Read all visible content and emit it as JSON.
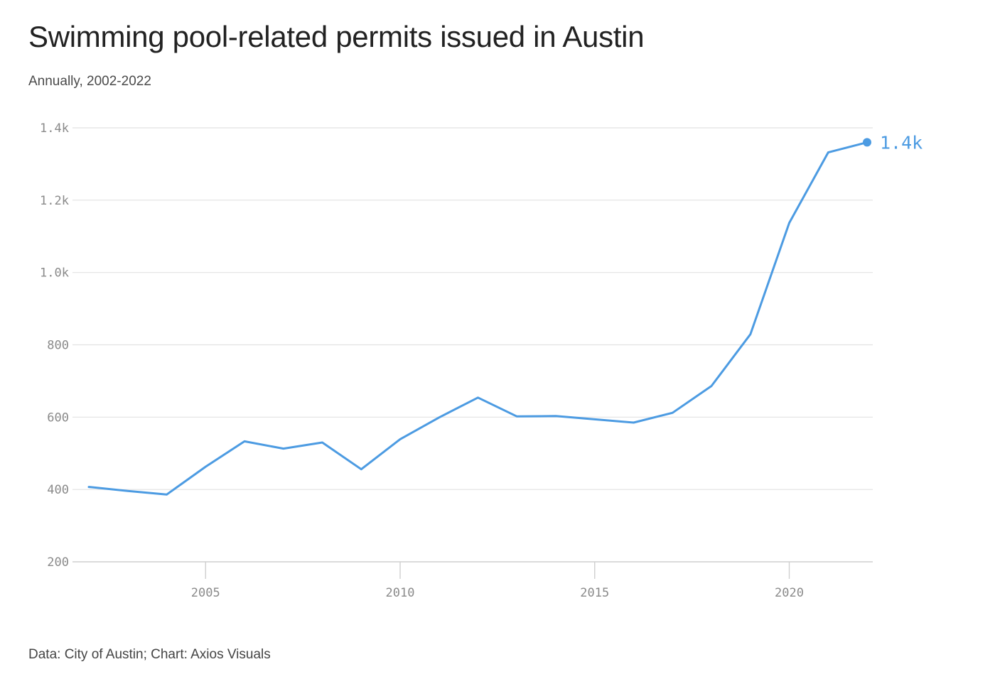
{
  "title": "Swimming pool-related permits issued in Austin",
  "subtitle": "Annually, 2002-2022",
  "footer": "Data: City of Austin; Chart: Axios Visuals",
  "colors": {
    "line": "#4c9be2",
    "grid": "#e2e2e2",
    "axis": "#cfcfcf",
    "tick_text": "#8a8a8a"
  },
  "chart_data": {
    "type": "line",
    "title": "Swimming pool-related permits issued in Austin",
    "subtitle": "Annually, 2002-2022",
    "xlabel": "",
    "ylabel": "",
    "xlim": [
      2002,
      2022
    ],
    "ylim": [
      200,
      1400
    ],
    "grid": true,
    "x_ticks": [
      2005,
      2010,
      2015,
      2020
    ],
    "x_tick_labels": [
      "2005",
      "2010",
      "2015",
      "2020"
    ],
    "y_ticks": [
      200,
      400,
      600,
      800,
      1000,
      1200,
      1400
    ],
    "y_tick_labels": [
      "200",
      "400",
      "600",
      "800",
      "1.0k",
      "1.2k",
      "1.4k"
    ],
    "series": [
      {
        "x": [
          2002,
          2003,
          2004,
          2005,
          2006,
          2007,
          2008,
          2009,
          2010,
          2011,
          2012,
          2013,
          2014,
          2015,
          2016,
          2017,
          2018,
          2019,
          2020,
          2021,
          2022
        ],
        "values": [
          407,
          396,
          386,
          463,
          533,
          513,
          530,
          456,
          539,
          599,
          654,
          602,
          603,
          594,
          585,
          612,
          686,
          829,
          1137,
          1332,
          1360
        ],
        "color": "#4c9be2"
      }
    ],
    "annotations": [
      {
        "x": 2022,
        "y": 1360,
        "text": "1.4k"
      }
    ]
  }
}
